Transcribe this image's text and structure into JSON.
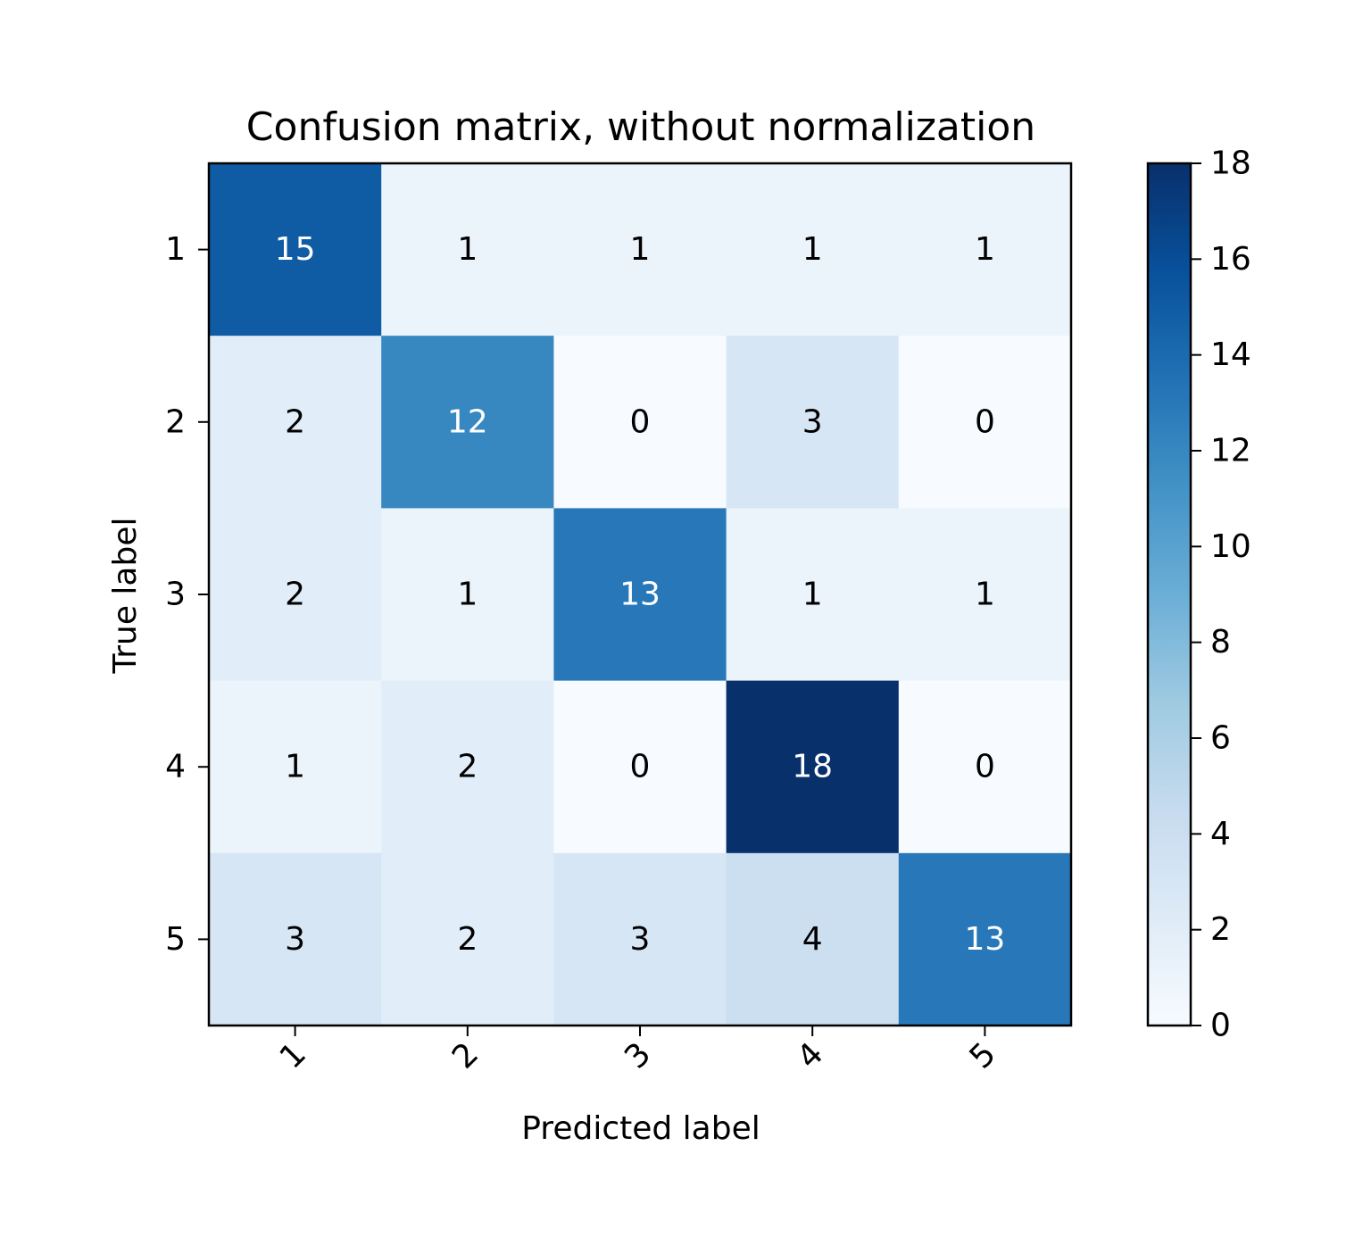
{
  "chart_data": {
    "type": "heatmap",
    "title": "Confusion matrix, without normalization",
    "xlabel": "Predicted label",
    "ylabel": "True label",
    "x_categories": [
      "1",
      "2",
      "3",
      "4",
      "5"
    ],
    "y_categories": [
      "1",
      "2",
      "3",
      "4",
      "5"
    ],
    "x_tick_rotation_deg": 45,
    "values": [
      [
        15,
        1,
        1,
        1,
        1
      ],
      [
        2,
        12,
        0,
        3,
        0
      ],
      [
        2,
        1,
        13,
        1,
        1
      ],
      [
        1,
        2,
        0,
        18,
        0
      ],
      [
        3,
        2,
        3,
        4,
        13
      ]
    ],
    "colormap": "Blues",
    "colormap_stops": [
      "#f7fbff",
      "#deebf7",
      "#c6dbef",
      "#9ecae1",
      "#6baed6",
      "#4292c6",
      "#2171b5",
      "#08519c",
      "#08306b"
    ],
    "vmin": 0,
    "vmax": 18,
    "text_threshold": 9,
    "text_color_dark": "#000000",
    "text_color_light": "#ffffff",
    "colorbar_ticks": [
      0,
      2,
      4,
      6,
      8,
      10,
      12,
      14,
      16,
      18
    ],
    "grid": false
  }
}
